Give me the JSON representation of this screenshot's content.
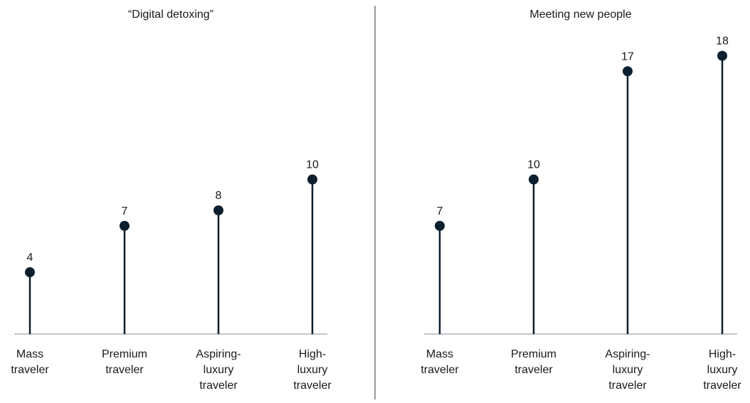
{
  "colors": {
    "stem": "#0b1f2e",
    "marker": "#0b1f2e",
    "baseline": "#8a8f94",
    "divider": "#333333",
    "text": "#1a1a1a"
  },
  "chart_data": [
    {
      "type": "lollipop",
      "title": "“Digital detoxing”",
      "categories": [
        [
          "Mass",
          "traveler"
        ],
        [
          "Premium",
          "traveler"
        ],
        [
          "Aspiring-",
          "luxury",
          "traveler"
        ],
        [
          "High-",
          "luxury",
          "traveler"
        ]
      ],
      "values": [
        4,
        7,
        8,
        10
      ],
      "ylim": [
        0,
        18
      ]
    },
    {
      "type": "lollipop",
      "title": "Meeting new people",
      "categories": [
        [
          "Mass",
          "traveler"
        ],
        [
          "Premium",
          "traveler"
        ],
        [
          "Aspiring-",
          "luxury",
          "traveler"
        ],
        [
          "High-",
          "luxury",
          "traveler"
        ]
      ],
      "values": [
        7,
        10,
        17,
        18
      ],
      "ylim": [
        0,
        18
      ]
    }
  ]
}
